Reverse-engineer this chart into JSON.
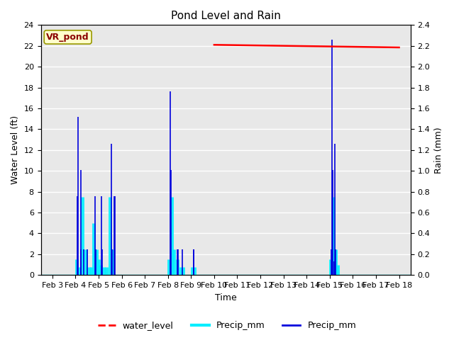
{
  "title": "Pond Level and Rain",
  "xlabel": "Time",
  "ylabel_left": "Water Level (ft)",
  "ylabel_right": "Rain (mm)",
  "annotation": "VR_pond",
  "ylim_left": [
    0,
    24
  ],
  "ylim_right": [
    0,
    2.4
  ],
  "x_tick_labels": [
    "Feb 3",
    "Feb 4",
    "Feb 5",
    "Feb 6",
    "Feb 7",
    "Feb 8",
    "Feb 9",
    "Feb 10",
    "Feb 11",
    "Feb 12",
    "Feb 13",
    "Feb 14",
    "Feb 15",
    "Feb 16",
    "Feb 17",
    "Feb 18"
  ],
  "water_level_color": "#ff0000",
  "precip_blue_color": "#0000dd",
  "precip_cyan_color": "#00eeff",
  "background_color": "#e8e8e8",
  "grid_color": "#ffffff",
  "legend_entries": [
    "water_level",
    "Precip_mm",
    "Precip_mm"
  ],
  "legend_colors": [
    "#ff0000",
    "#00eeff",
    "#0000dd"
  ],
  "cyan_baseline": 0.02,
  "title_fontsize": 11,
  "label_fontsize": 9,
  "tick_fontsize": 8
}
